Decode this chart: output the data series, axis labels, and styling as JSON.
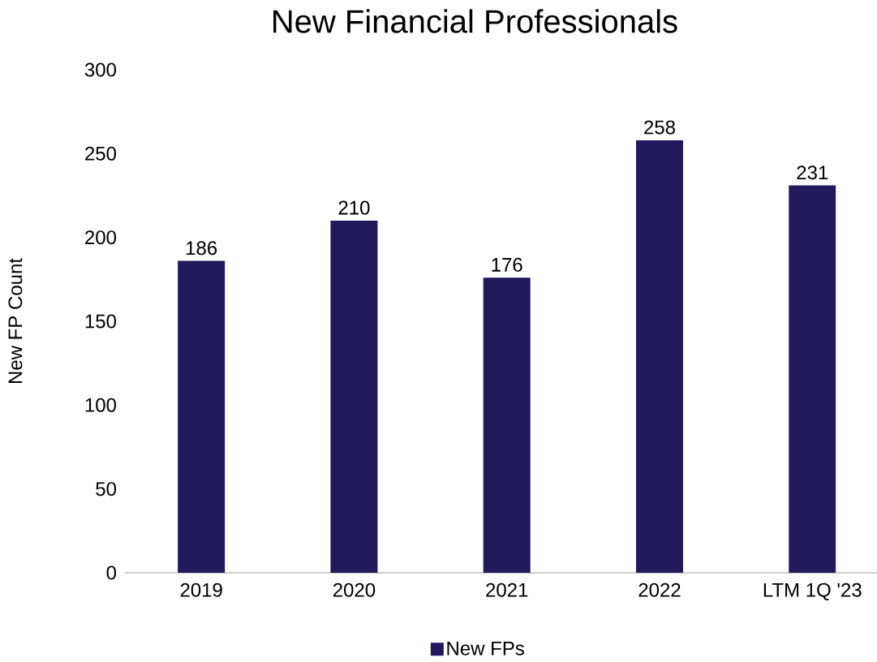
{
  "chart_data": {
    "type": "bar",
    "title": "New Financial Professionals",
    "ylabel": "New FP Count",
    "categories": [
      "2019",
      "2020",
      "2021",
      "2022",
      "LTM 1Q '23"
    ],
    "series": [
      {
        "name": "New FPs",
        "color": "#21195c",
        "values": [
          186,
          210,
          176,
          258,
          231
        ]
      }
    ],
    "ylim": [
      0,
      300
    ],
    "yticks": [
      0,
      50,
      100,
      150,
      200,
      250,
      300
    ],
    "data_labels": true,
    "legend": "bottom",
    "grid": false
  }
}
